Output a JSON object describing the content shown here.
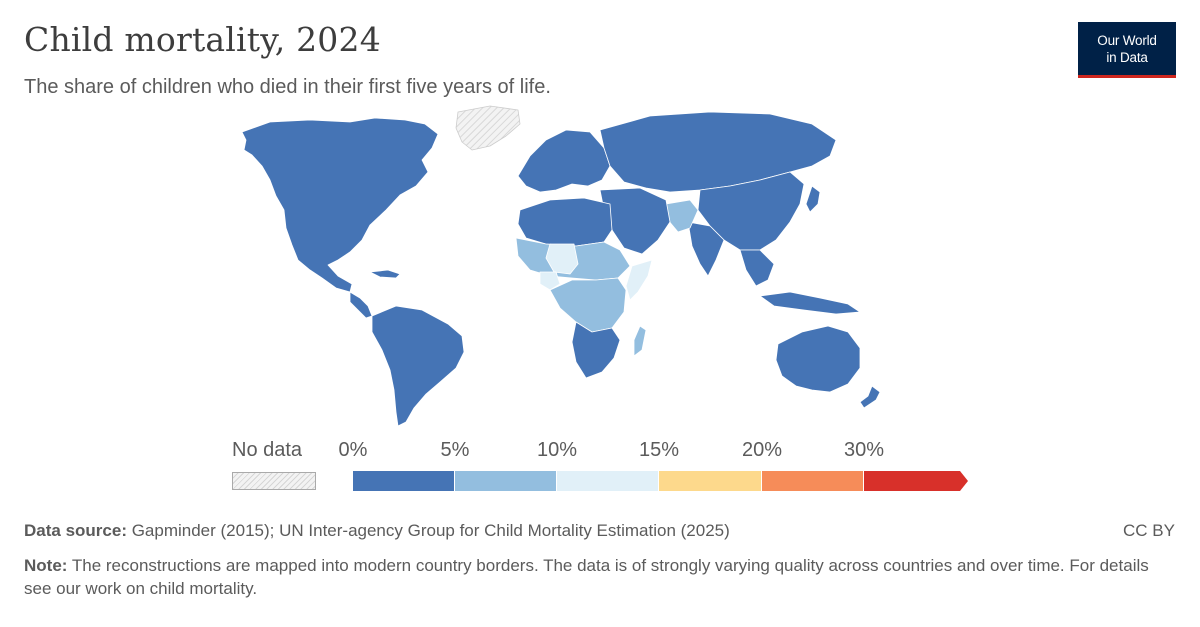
{
  "header": {
    "title": "Child mortality, 2024",
    "subtitle": "The share of children who died in their first five years of life."
  },
  "logo": {
    "line1": "Our World",
    "line2": "in Data"
  },
  "legend": {
    "no_data_label": "No data",
    "ticks": [
      "0%",
      "5%",
      "10%",
      "15%",
      "20%",
      "30%"
    ],
    "bins": [
      {
        "from": "0%",
        "to": "5%",
        "color": "#4574b5"
      },
      {
        "from": "5%",
        "to": "10%",
        "color": "#93bedf"
      },
      {
        "from": "10%",
        "to": "15%",
        "color": "#e1f0f8"
      },
      {
        "from": "15%",
        "to": "20%",
        "color": "#fdd98c"
      },
      {
        "from": "20%",
        "to": "30%",
        "color": "#f68c59"
      },
      {
        "from": "30%",
        "to": "",
        "color": "#d8302a"
      }
    ]
  },
  "map": {
    "color_no_data": "#e9e9e9",
    "regions": [
      {
        "name": "North America",
        "class": "0-5%"
      },
      {
        "name": "Greenland",
        "class": "No data"
      },
      {
        "name": "South America",
        "class": "0-5%"
      },
      {
        "name": "Europe",
        "class": "0-5%"
      },
      {
        "name": "Russia and Central Asia",
        "class": "0-5%"
      },
      {
        "name": "China and East Asia",
        "class": "0-5%"
      },
      {
        "name": "Southeast Asia",
        "class": "0-5%"
      },
      {
        "name": "North Africa",
        "class": "0-5%"
      },
      {
        "name": "Arabian Peninsula",
        "class": "0-5%"
      },
      {
        "name": "Afghanistan and Pakistan",
        "class": "5-10%"
      },
      {
        "name": "Sahel",
        "class": "5-10%"
      },
      {
        "name": "Niger and Chad",
        "class": "10-15%"
      },
      {
        "name": "Nigeria",
        "class": "10-15%"
      },
      {
        "name": "Central Africa",
        "class": "5-10%"
      },
      {
        "name": "Somalia",
        "class": "10-15%"
      },
      {
        "name": "Southern Africa",
        "class": "0-5%"
      },
      {
        "name": "Madagascar",
        "class": "5-10%"
      },
      {
        "name": "Australia",
        "class": "0-5%"
      },
      {
        "name": "New Zealand",
        "class": "0-5%"
      }
    ]
  },
  "footer": {
    "source_label": "Data source:",
    "source_text": " Gapminder (2015); UN Inter-agency Group for Child Mortality Estimation (2025)",
    "note_label": "Note:",
    "note_text": " The reconstructions are mapped into modern country borders. The data is of strongly varying quality across countries and over time. For details see our work on child mortality.",
    "license": "CC BY"
  }
}
